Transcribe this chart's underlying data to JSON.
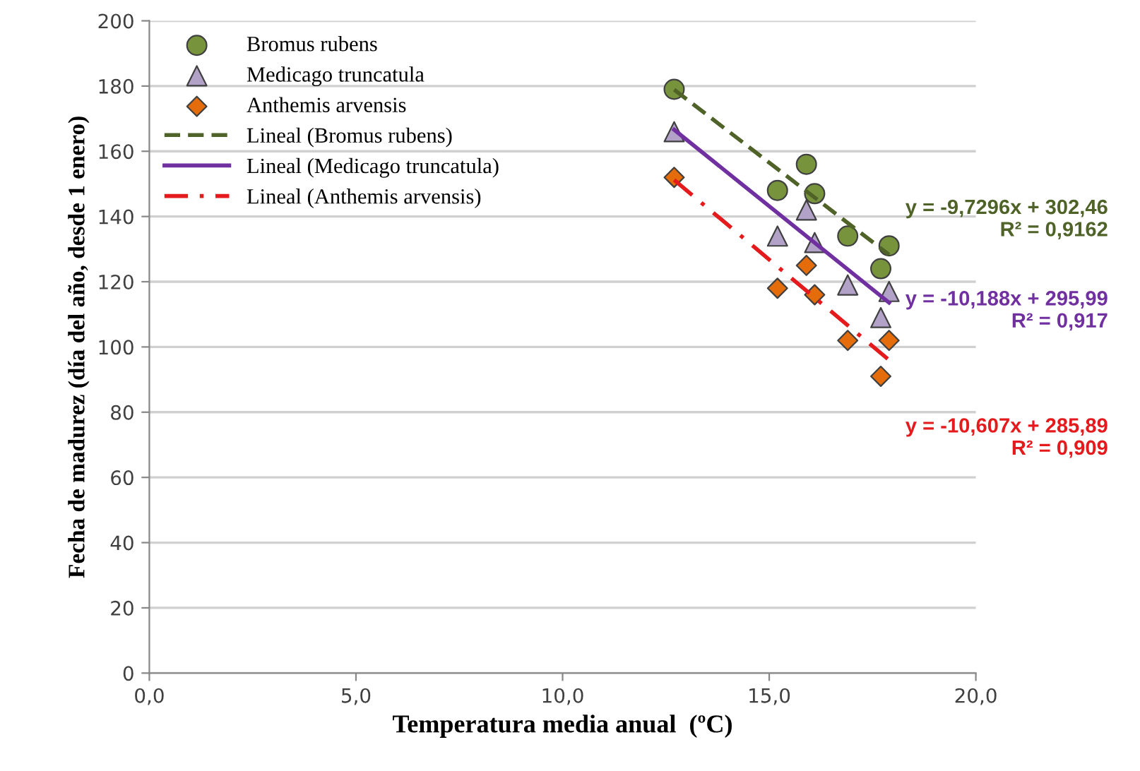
{
  "chart_data": {
    "type": "scatter",
    "xlabel": "Temperatura media anual  (ºC)",
    "ylabel": "Fecha de madurez (día del año, desde 1 enero)",
    "xlim": [
      0,
      20
    ],
    "xticks": [
      {
        "value": 0,
        "label": "0,0"
      },
      {
        "value": 5,
        "label": "5,0"
      },
      {
        "value": 10,
        "label": "10,0"
      },
      {
        "value": 15,
        "label": "15,0"
      },
      {
        "value": 20,
        "label": "20,0"
      }
    ],
    "ylim": [
      0,
      200
    ],
    "yticks": [
      0,
      20,
      40,
      60,
      80,
      100,
      120,
      140,
      160,
      180,
      200
    ],
    "grid": "y",
    "legend": "top left",
    "x": [
      12.7,
      15.2,
      15.9,
      16.1,
      16.9,
      17.7,
      17.9
    ],
    "series": [
      {
        "name": "Bromus rubens",
        "marker": "circle",
        "color": "#77933c",
        "values": [
          179,
          148,
          156,
          147,
          134,
          124,
          131
        ]
      },
      {
        "name": "Medicago truncatula",
        "marker": "triangle",
        "color": "#b3a2c7",
        "values": [
          166,
          134,
          142,
          132,
          119,
          109,
          117
        ]
      },
      {
        "name": "Anthemis arvensis",
        "marker": "diamond",
        "color": "#e46c0a",
        "values": [
          152,
          118,
          125,
          116,
          102,
          91,
          102
        ]
      },
      {
        "name": "Lineal (Bromus rubens)",
        "type": "line",
        "line_style": "dashed",
        "color": "#4f6228",
        "values": [
          178.9,
          null,
          null,
          null,
          null,
          null,
          128.3
        ]
      },
      {
        "name": "Lineal (Medicago truncatula)",
        "type": "line",
        "line_style": "solid",
        "color": "#7030a0",
        "values": [
          166.6,
          null,
          null,
          null,
          null,
          null,
          113.6
        ]
      },
      {
        "name": "Lineal (Anthemis arvensis)",
        "type": "line",
        "line_style": "dashdot",
        "color": "#e41a1c",
        "values": [
          151.2,
          null,
          null,
          null,
          null,
          null,
          96.0
        ]
      }
    ],
    "annotations": [
      "y = -9,7296x + 302,46\nR² = 0,9162",
      "y = -10,188x + 295,99\nR² = 0,917",
      "y = -10,607x + 285,89\nR² = 0,909"
    ]
  }
}
